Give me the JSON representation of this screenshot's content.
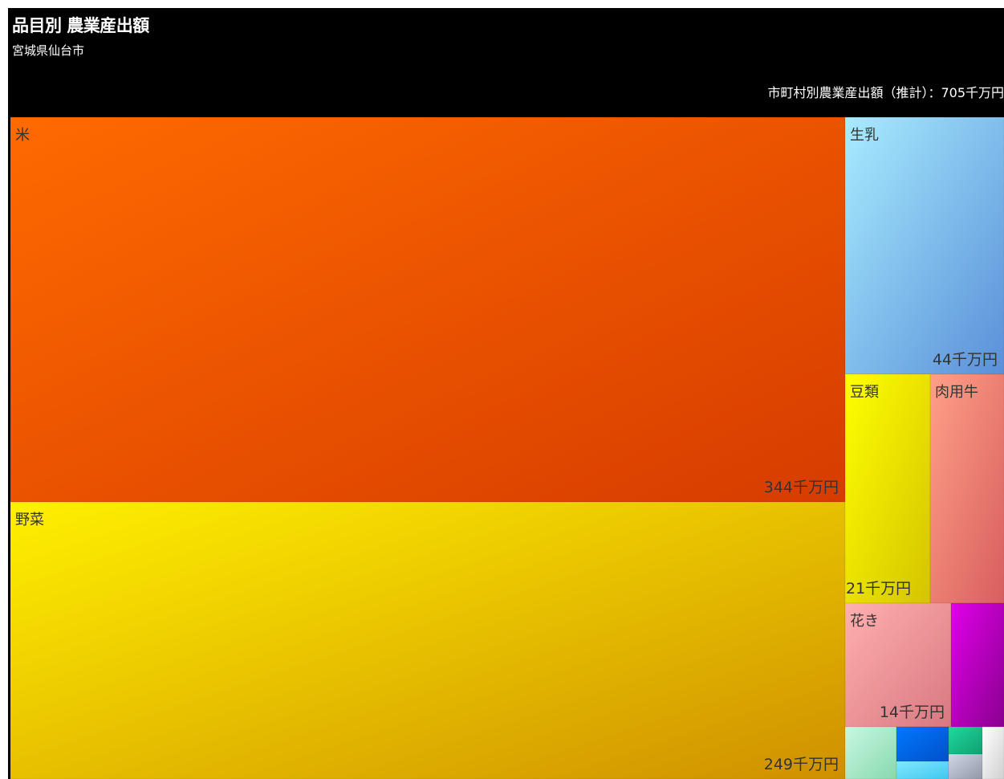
{
  "header": {
    "title": "品目別 農業産出額",
    "subtitle": "宮城県仙台市",
    "total_label": "市町村別農業産出額（推計）：705千万円"
  },
  "chart_data": {
    "type": "treemap",
    "title": "品目別 農業産出額",
    "subtitle": "宮城県仙台市",
    "total": 705,
    "unit": "千万円",
    "items": [
      {
        "name": "米",
        "value": 344,
        "label": "344千万円",
        "color_light": "#ff6a00",
        "color_dark": "#d63c00",
        "text_color": "#333333"
      },
      {
        "name": "野菜",
        "value": 249,
        "label": "249千万円",
        "color_light": "#fff000",
        "color_dark": "#cf9000",
        "text_color": "#333333"
      },
      {
        "name": "生乳",
        "value": 44,
        "label": "44千万円",
        "color_light": "#a8ecff",
        "color_dark": "#5a8fd8",
        "text_color": "#333333"
      },
      {
        "name": "豆類",
        "value": 21,
        "label": "21千万円",
        "color_light": "#ffff00",
        "color_dark": "#d4c400",
        "text_color": "#333333"
      },
      {
        "name": "肉用牛",
        "value": 21,
        "label": "",
        "color_light": "#ffa088",
        "color_dark": "#d85e5e",
        "text_color": "#333333"
      },
      {
        "name": "花き",
        "value": 14,
        "label": "14千万円",
        "color_light": "#ffb0b0",
        "color_dark": "#d87880",
        "text_color": "#333333"
      },
      {
        "name": "",
        "value": 7,
        "label": "",
        "color_light": "#e000e8",
        "color_dark": "#8a0090",
        "text_color": "#333333"
      },
      {
        "name": "",
        "value": 2,
        "label": "",
        "color_light": "#c8f8e0",
        "color_dark": "#88d8b0",
        "text_color": "#333333"
      },
      {
        "name": "",
        "value": 1.5,
        "label": "",
        "color_light": "#0078ff",
        "color_dark": "#0050c8",
        "text_color": "#333333"
      },
      {
        "name": "",
        "value": 0.8,
        "label": "",
        "color_light": "#80e8ff",
        "color_dark": "#40c8f0",
        "text_color": "#333333"
      },
      {
        "name": "",
        "value": 0.9,
        "label": "",
        "color_light": "#20d8a0",
        "color_dark": "#10a070",
        "text_color": "#333333"
      },
      {
        "name": "",
        "value": 0.6,
        "label": "",
        "color_light": "#d0d8e8",
        "color_dark": "#9098a8",
        "text_color": "#333333"
      },
      {
        "name": "",
        "value": 0.4,
        "label": "",
        "color_light": "#ffffff",
        "color_dark": "#d0d0d0",
        "text_color": "#333333"
      }
    ]
  }
}
